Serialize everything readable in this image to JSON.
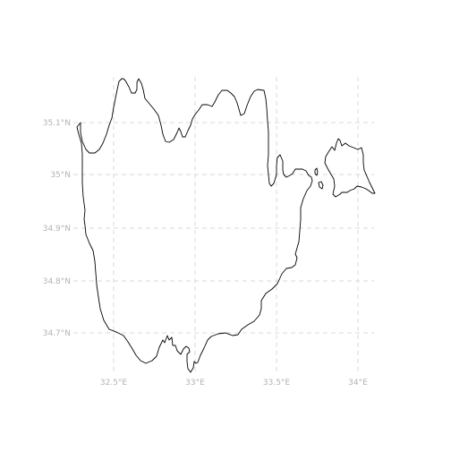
{
  "map": {
    "longitude_labels": [
      "32.5°E",
      "33°E",
      "33.5°E",
      "34°E"
    ],
    "latitude_labels": [
      "35.1°N",
      "35°N",
      "34.9°N",
      "34.8°N",
      "34.7°N"
    ],
    "colors": {
      "coastline": "#000000",
      "graticule": "#d9d9d9",
      "label": "#b3b3b3",
      "background": "#ffffff"
    }
  }
}
